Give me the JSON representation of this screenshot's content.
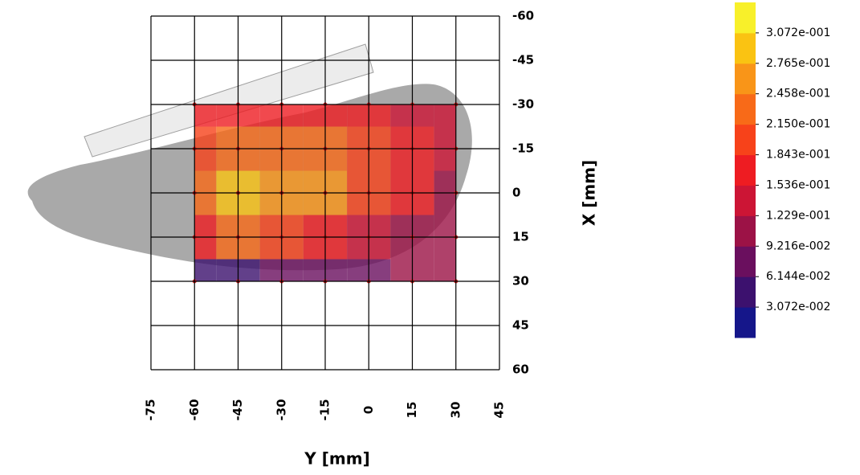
{
  "chart_data": {
    "type": "heatmap",
    "xlabel": "Y [mm]",
    "ylabel": "X [mm]",
    "xlim": [
      -75,
      45
    ],
    "xticks": [
      -75,
      -60,
      -45,
      -30,
      -15,
      0,
      15,
      30,
      45
    ],
    "ylim": [
      -60,
      60
    ],
    "yticks": [
      -60,
      -45,
      -30,
      -15,
      0,
      15,
      30,
      45,
      60
    ],
    "grid": true,
    "x": [
      -60,
      -45,
      -30,
      -15,
      0,
      15,
      30
    ],
    "y": [
      -30,
      -15,
      0,
      15,
      30
    ],
    "z": [
      [
        0.16,
        0.17,
        0.17,
        0.17,
        0.16,
        0.15,
        0.14
      ],
      [
        0.2,
        0.24,
        0.22,
        0.23,
        0.19,
        0.16,
        0.13
      ],
      [
        0.24,
        0.3,
        0.25,
        0.27,
        0.21,
        0.16,
        0.12
      ],
      [
        0.17,
        0.22,
        0.19,
        0.18,
        0.14,
        0.12,
        0.1
      ],
      [
        0.05,
        0.06,
        0.07,
        0.07,
        0.09,
        0.1,
        0.1
      ]
    ],
    "colorbar": {
      "lim": [
        0,
        0.33792
      ],
      "colors": [
        "#15168a",
        "#3c116e",
        "#6a0f5e",
        "#9c1246",
        "#cc1535",
        "#ee1c22",
        "#f7421a",
        "#f86a18",
        "#f99518",
        "#fac312",
        "#f8f02a"
      ],
      "ticks": [
        {
          "value": 0.03072,
          "label": "3.072e-002"
        },
        {
          "value": 0.06144,
          "label": "6.144e-002"
        },
        {
          "value": 0.09216,
          "label": "9.216e-002"
        },
        {
          "value": 0.1229,
          "label": "1.229e-001"
        },
        {
          "value": 0.1536,
          "label": "1.536e-001"
        },
        {
          "value": 0.1843,
          "label": "1.843e-001"
        },
        {
          "value": 0.215,
          "label": "2.150e-001"
        },
        {
          "value": 0.2458,
          "label": "2.458e-001"
        },
        {
          "value": 0.2765,
          "label": "2.765e-001"
        },
        {
          "value": 0.3072,
          "label": "3.072e-001"
        }
      ]
    }
  }
}
